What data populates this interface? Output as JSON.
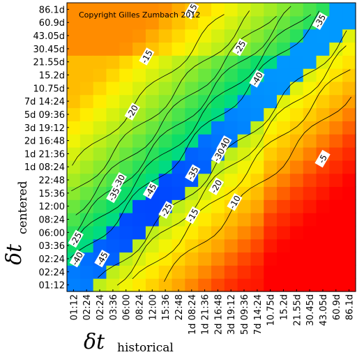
{
  "chart_data": {
    "type": "heatmap",
    "title": "",
    "copyright": "Copyright Gilles Zumbach 2012",
    "xlabel": {
      "symbol": "δt",
      "subscript": "historical"
    },
    "ylabel": {
      "symbol": "δt",
      "subscript": "centered"
    },
    "categories": [
      "01:12",
      "02:24",
      "02:24",
      "03:36",
      "06:00",
      "08:24",
      "12:00",
      "15:36",
      "22:48",
      "1d 08:24",
      "1d 21:36",
      "2d 16:48",
      "3d 19:12",
      "5d 09:36",
      "7d 14:24",
      "10.75d",
      "15.2d",
      "21.55d",
      "30.45d",
      "43.05d",
      "60.9d",
      "86.1d"
    ],
    "x_categories": [
      "01:12",
      "02:24",
      "02:24",
      "03:36",
      "06:00",
      "08:24",
      "12:00",
      "15:36",
      "22:48",
      "1d 08:24",
      "1d 21:36",
      "2d 16:48",
      "3d 19:12",
      "5d 09:36",
      "7d 14:24",
      "10.75d",
      "15.2d",
      "21.55d",
      "30.45d",
      "43.05d",
      "60.9d",
      "86.1d"
    ],
    "y_categories": [
      "01:12",
      "02:24",
      "02:24",
      "03:36",
      "06:00",
      "08:24",
      "12:00",
      "15:36",
      "22:48",
      "1d 08:24",
      "1d 21:36",
      "2d 16:48",
      "3d 19:12",
      "5d 09:36",
      "7d 14:24",
      "10.75d",
      "15.2d",
      "21.55d",
      "30.45d",
      "43.05d",
      "60.9d",
      "86.1d"
    ],
    "value_range": [
      -50,
      0
    ],
    "contour_levels": [
      -45,
      -40,
      -35,
      -30,
      -25,
      -20,
      -15,
      -10,
      -5
    ],
    "contour_labels": [
      {
        "text": "-15",
        "x": 9.5,
        "y": 21.4
      },
      {
        "text": "-35",
        "x": 19.3,
        "y": 20.6
      },
      {
        "text": "-25",
        "x": 13.2,
        "y": 18.6
      },
      {
        "text": "-15",
        "x": 6.1,
        "y": 17.9
      },
      {
        "text": "-40",
        "x": 14.5,
        "y": 16.2
      },
      {
        "text": "-20",
        "x": 5.0,
        "y": 13.7
      },
      {
        "text": "-40",
        "x": 12.0,
        "y": 11.2
      },
      {
        "text": "-30",
        "x": 11.6,
        "y": 10.4
      },
      {
        "text": "-5",
        "x": 19.5,
        "y": 10.1
      },
      {
        "text": "-35",
        "x": 9.6,
        "y": 9.0
      },
      {
        "text": "-30",
        "x": 4.0,
        "y": 8.4
      },
      {
        "text": "-45",
        "x": 6.4,
        "y": 7.7
      },
      {
        "text": "-20",
        "x": 11.4,
        "y": 8.0
      },
      {
        "text": "-35",
        "x": 3.6,
        "y": 7.4
      },
      {
        "text": "-10",
        "x": 12.8,
        "y": 6.8
      },
      {
        "text": "-25",
        "x": 7.6,
        "y": 6.2
      },
      {
        "text": "-15",
        "x": 9.6,
        "y": 5.8
      },
      {
        "text": "-25",
        "x": 0.7,
        "y": 4.0
      },
      {
        "text": "-40",
        "x": 0.8,
        "y": 2.5
      },
      {
        "text": "-45",
        "x": 2.7,
        "y": 2.5
      }
    ]
  }
}
